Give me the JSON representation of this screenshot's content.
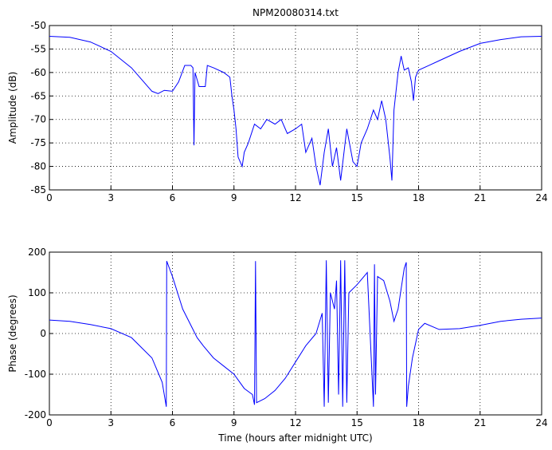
{
  "chart_data": [
    {
      "type": "line",
      "title": "NPM20080314.txt",
      "ylabel": "Amplitude (dB)",
      "xlim": [
        0,
        24
      ],
      "xticks": [
        0,
        3,
        6,
        9,
        12,
        15,
        18,
        21,
        24
      ],
      "ylim": [
        -85,
        -50
      ],
      "yticks": [
        -85,
        -80,
        -75,
        -70,
        -65,
        -60,
        -55,
        -50
      ],
      "grid": true,
      "series": [
        {
          "color": "#0000ff",
          "x": [
            0,
            1,
            2,
            3,
            4,
            4.5,
            5,
            5.3,
            5.6,
            6,
            6.3,
            6.6,
            6.9,
            7.0,
            7.05,
            7.1,
            7.3,
            7.6,
            7.7,
            8,
            8.5,
            8.8,
            8.9,
            9.0,
            9.1,
            9.2,
            9.4,
            9.5,
            9.7,
            10,
            10.3,
            10.6,
            11,
            11.3,
            11.6,
            12,
            12.3,
            12.5,
            12.8,
            13,
            13.2,
            13.4,
            13.6,
            13.8,
            14,
            14.2,
            14.5,
            14.8,
            15,
            15.2,
            15.5,
            15.8,
            16,
            16.2,
            16.4,
            16.6,
            16.7,
            16.8,
            17,
            17.15,
            17.3,
            17.5,
            17.65,
            17.75,
            17.85,
            18,
            18.5,
            19,
            20,
            21,
            22,
            23,
            24
          ],
          "values": [
            -52.3,
            -52.5,
            -53.5,
            -55.5,
            -59,
            -61.5,
            -64,
            -64.5,
            -63.8,
            -64,
            -62,
            -58.5,
            -58.5,
            -59,
            -75.5,
            -60,
            -63,
            -63,
            -58.5,
            -59,
            -60,
            -61,
            -65,
            -68,
            -72,
            -78,
            -80,
            -77,
            -75,
            -71,
            -72,
            -70,
            -71,
            -70,
            -73,
            -72,
            -71,
            -77,
            -74,
            -80,
            -84,
            -77,
            -72,
            -80,
            -76,
            -83,
            -72,
            -79,
            -80,
            -75,
            -72,
            -68,
            -70,
            -66,
            -70,
            -78,
            -83,
            -68,
            -60,
            -56.5,
            -59.5,
            -59,
            -62,
            -66,
            -61,
            -59.5,
            -58.5,
            -57.5,
            -55.5,
            -53.8,
            -53,
            -52.4,
            -52.3
          ]
        }
      ]
    },
    {
      "type": "line",
      "xlabel": "Time (hours after midnight UTC)",
      "ylabel": "Phase (degrees)",
      "xlim": [
        0,
        24
      ],
      "xticks": [
        0,
        3,
        6,
        9,
        12,
        15,
        18,
        21,
        24
      ],
      "ylim": [
        -200,
        200
      ],
      "yticks": [
        -200,
        -100,
        0,
        100,
        200
      ],
      "grid": true,
      "series": [
        {
          "color": "#0000ff",
          "x": [
            0,
            1,
            2,
            3,
            4,
            5,
            5.5,
            5.7,
            5.72,
            6,
            6.5,
            7,
            7.2,
            7.5,
            8,
            8.5,
            9,
            9.5,
            9.9,
            10,
            10.05,
            10.1,
            10.5,
            11,
            11.5,
            12,
            12.5,
            13,
            13.3,
            13.4,
            13.5,
            13.6,
            13.7,
            13.9,
            14,
            14.1,
            14.2,
            14.3,
            14.4,
            14.5,
            14.6,
            15,
            15.5,
            15.8,
            15.85,
            15.9,
            16,
            16.3,
            16.6,
            16.8,
            17,
            17.3,
            17.4,
            17.42,
            17.5,
            17.7,
            18,
            18.3,
            19,
            20,
            21,
            22,
            23,
            24
          ],
          "values": [
            33,
            30,
            22,
            12,
            -10,
            -60,
            -120,
            -180,
            178,
            140,
            60,
            10,
            -10,
            -30,
            -60,
            -80,
            -100,
            -135,
            -150,
            -175,
            178,
            -170,
            -160,
            -140,
            -110,
            -70,
            -30,
            0,
            50,
            -180,
            180,
            -170,
            100,
            60,
            130,
            -150,
            180,
            -180,
            180,
            -170,
            100,
            120,
            150,
            -180,
            170,
            -150,
            140,
            130,
            80,
            30,
            60,
            160,
            175,
            -180,
            -130,
            -60,
            10,
            25,
            10,
            12,
            20,
            30,
            35,
            38
          ]
        }
      ]
    }
  ]
}
